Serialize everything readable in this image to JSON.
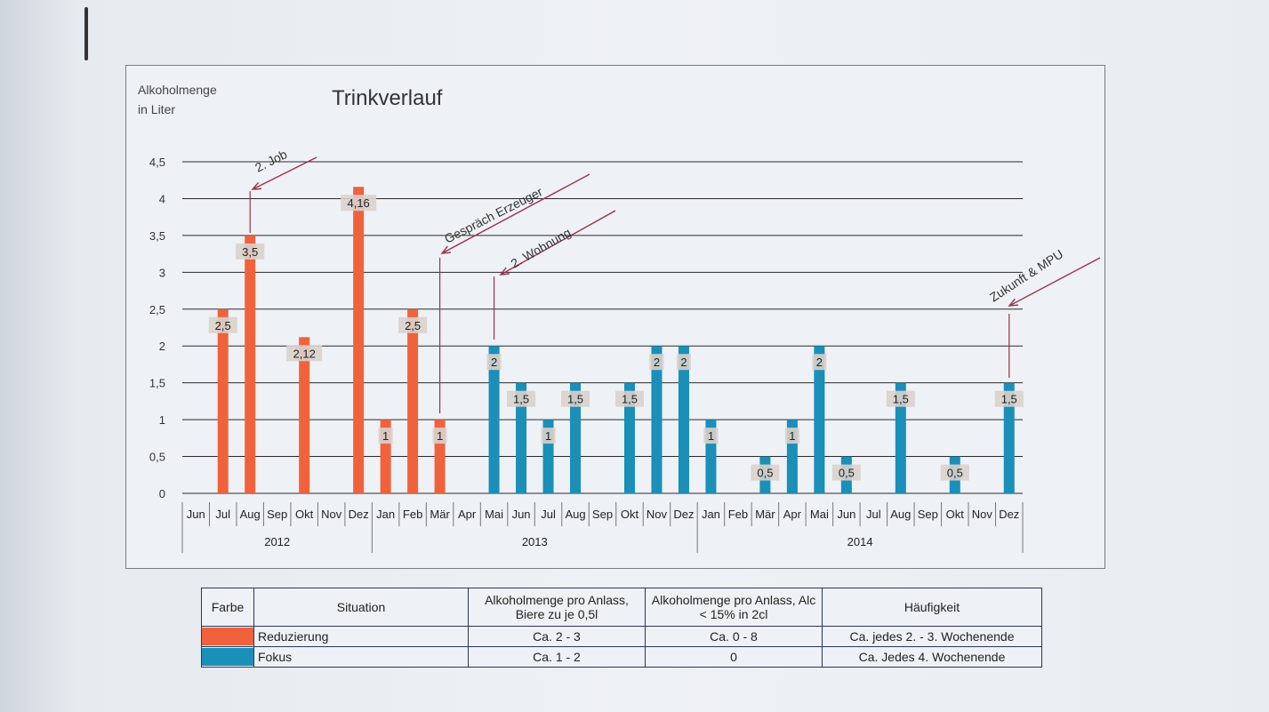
{
  "colors": {
    "reduzierung": "#f0623c",
    "fokus": "#1a8fb8",
    "grid": "#2a2a2a",
    "annotation": "#a0304a"
  },
  "chart_data": {
    "type": "bar",
    "title": "Trinkverlauf",
    "ylabel_line1": "Alkoholmenge",
    "ylabel_line2": "in Liter",
    "ylim": [
      0,
      4.5
    ],
    "yticks": [
      "0",
      "0,5",
      "1",
      "1,5",
      "2",
      "2,5",
      "3",
      "3,5",
      "4",
      "4,5"
    ],
    "years": [
      {
        "label": "2012",
        "start": 0,
        "end": 7
      },
      {
        "label": "2013",
        "start": 7,
        "end": 19
      },
      {
        "label": "2014",
        "start": 19,
        "end": 31
      }
    ],
    "categories": [
      "Jun",
      "Jul",
      "Aug",
      "Sep",
      "Okt",
      "Nov",
      "Dez",
      "Jan",
      "Feb",
      "Mär",
      "Apr",
      "Mai",
      "Jun",
      "Jul",
      "Aug",
      "Sep",
      "Okt",
      "Nov",
      "Dez",
      "Jan",
      "Feb",
      "Mär",
      "Apr",
      "Mai",
      "Jun",
      "Jul",
      "Aug",
      "Sep",
      "Okt",
      "Nov",
      "Dez"
    ],
    "values": [
      null,
      2.5,
      3.5,
      null,
      2.12,
      null,
      4.16,
      1,
      2.5,
      1,
      null,
      2,
      1.5,
      1,
      1.5,
      null,
      1.5,
      2,
      2,
      1,
      null,
      0.5,
      1,
      2,
      0.5,
      null,
      1.5,
      null,
      0.5,
      null,
      1.5
    ],
    "value_labels": [
      "",
      "2,5",
      "3,5",
      "",
      "2,12",
      "",
      "4,16",
      "1",
      "2,5",
      "1",
      "",
      "2",
      "1,5",
      "1",
      "1,5",
      "",
      "1,5",
      "2",
      "2",
      "1",
      "",
      "0,5",
      "1",
      "2",
      "0,5",
      "",
      "1,5",
      "",
      "0,5",
      "",
      "1,5"
    ],
    "series_by_index": [
      "r",
      "r",
      "r",
      "r",
      "r",
      "r",
      "r",
      "r",
      "r",
      "r",
      "r",
      "f",
      "f",
      "f",
      "f",
      "f",
      "f",
      "f",
      "f",
      "f",
      "f",
      "f",
      "f",
      "f",
      "f",
      "f",
      "f",
      "f",
      "f",
      "f",
      "f"
    ],
    "annotations": [
      {
        "text": "2. Job",
        "index": 2
      },
      {
        "text": "Gespräch Erzeuger",
        "index": 9
      },
      {
        "text": "2. Wohnung",
        "index": 11
      },
      {
        "text": "Zukunft & MPU",
        "index": 30
      }
    ],
    "grid": true
  },
  "legend": {
    "headers": [
      "Farbe",
      "Situation",
      "Alkoholmenge pro Anlass, Biere zu je 0,5l",
      "Alkoholmenge pro Anlass, Alc < 15% in 2cl",
      "Häufigkeit"
    ],
    "rows": [
      {
        "situation": "Reduzierung",
        "beer": "Ca. 2 - 3",
        "spirits": "Ca. 0 - 8",
        "frequency": "Ca. jedes 2. - 3. Wochenende"
      },
      {
        "situation": "Fokus",
        "beer": "Ca. 1 - 2",
        "spirits": "0",
        "frequency": "Ca. Jedes 4. Wochenende"
      }
    ]
  }
}
